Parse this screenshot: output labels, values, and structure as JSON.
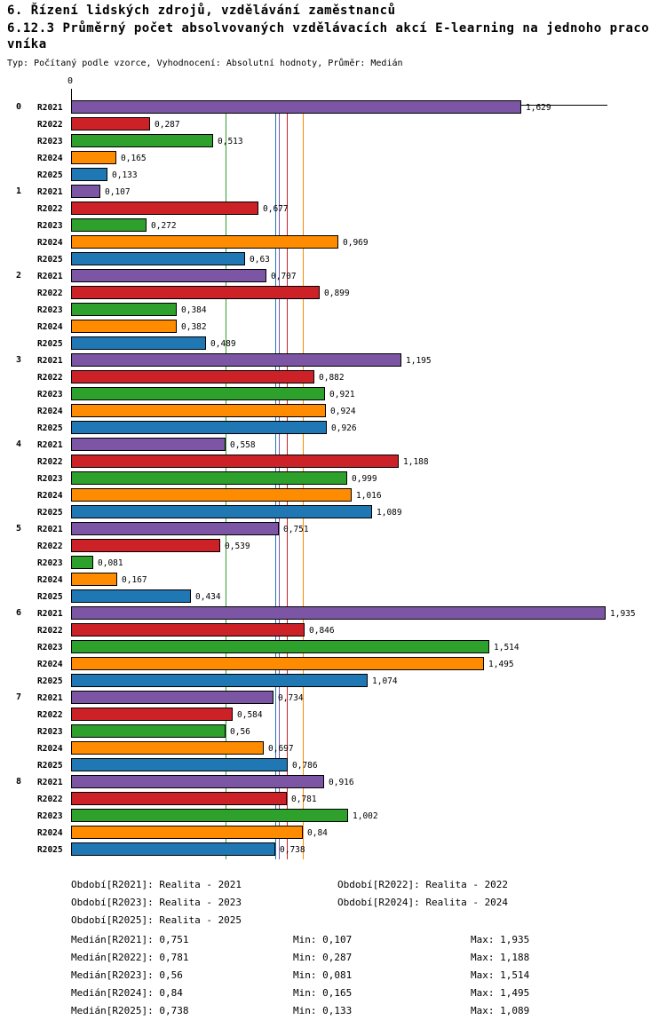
{
  "header": {
    "title": "6. Řízení lidských zdrojů, vzdělávání zaměstnanců",
    "subtitle_line1": "6.12.3 Průměrný počet absolvovaných vzdělávacích akcí E-learning na jednoho praco",
    "subtitle_line2": "vníka",
    "meta": "Typ: Počítaný podle vzorce, Vyhodnocení: Absolutní hodnoty, Průměr: Medián"
  },
  "chart_data": {
    "type": "bar",
    "orientation": "horizontal",
    "title": "6.12.3 Průměrný počet absolvovaných vzdělávacích akcí E-learning na jednoho pracovníka",
    "xlabel": "",
    "ylabel": "",
    "xlim": [
      0,
      1.98
    ],
    "grid": false,
    "axis_zero_label": "0",
    "categories": [
      "0",
      "1",
      "2",
      "3",
      "4",
      "5",
      "6",
      "7",
      "8"
    ],
    "series": [
      {
        "name": "R2021",
        "color": "#7d55a5",
        "values": [
          1.629,
          0.107,
          0.707,
          1.195,
          0.558,
          0.751,
          1.935,
          0.734,
          0.916
        ],
        "labels": [
          "1,629",
          "0,107",
          "0,707",
          "1,195",
          "0,558",
          "0,751",
          "1,935",
          "0,734",
          "0,916"
        ]
      },
      {
        "name": "R2022",
        "color": "#cc2127",
        "values": [
          0.287,
          0.677,
          0.899,
          0.882,
          1.188,
          0.539,
          0.846,
          0.584,
          0.781
        ],
        "labels": [
          "0,287",
          "0,677",
          "0,899",
          "0,882",
          "1,188",
          "0,539",
          "0,846",
          "0,584",
          "0,781"
        ]
      },
      {
        "name": "R2023",
        "color": "#2ea02c",
        "values": [
          0.513,
          0.272,
          0.384,
          0.921,
          0.999,
          0.081,
          1.514,
          0.56,
          1.002
        ],
        "labels": [
          "0,513",
          "0,272",
          "0,384",
          "0,921",
          "0,999",
          "0,081",
          "1,514",
          "0,56",
          "1,002"
        ]
      },
      {
        "name": "R2024",
        "color": "#ff8c00",
        "values": [
          0.165,
          0.969,
          0.382,
          0.924,
          1.016,
          0.167,
          1.495,
          0.697,
          0.84
        ],
        "labels": [
          "0,165",
          "0,969",
          "0,382",
          "0,924",
          "1,016",
          "0,167",
          "1,495",
          "0,697",
          "0,84"
        ]
      },
      {
        "name": "R2025",
        "color": "#1f77b4",
        "values": [
          0.133,
          0.63,
          0.489,
          0.926,
          1.089,
          0.434,
          1.074,
          0.786,
          0.738
        ],
        "labels": [
          "0,133",
          "0,63",
          "0,489",
          "0,926",
          "1,089",
          "0,434",
          "1,074",
          "0,786",
          "0,738"
        ]
      }
    ],
    "medians": [
      {
        "series": "R2021",
        "value": 0.751,
        "color": "#7d55a5"
      },
      {
        "series": "R2022",
        "value": 0.781,
        "color": "#cc2127"
      },
      {
        "series": "R2023",
        "value": 0.56,
        "color": "#2ea02c"
      },
      {
        "series": "R2024",
        "value": 0.84,
        "color": "#ff8c00"
      },
      {
        "series": "R2025",
        "value": 0.738,
        "color": "#1f77b4"
      }
    ],
    "legend_position": "bottom"
  },
  "legend": [
    {
      "text": "Období[R2021]: Realita - 2021"
    },
    {
      "text": "Období[R2022]: Realita - 2022"
    },
    {
      "text": "Období[R2023]: Realita - 2023"
    },
    {
      "text": "Období[R2024]: Realita - 2024"
    },
    {
      "text": "Období[R2025]: Realita - 2025"
    }
  ],
  "stats": [
    {
      "median": "Medián[R2021]: 0,751",
      "min": "Min: 0,107",
      "max": "Max: 1,935"
    },
    {
      "median": "Medián[R2022]: 0,781",
      "min": "Min: 0,287",
      "max": "Max: 1,188"
    },
    {
      "median": "Medián[R2023]: 0,56",
      "min": "Min: 0,081",
      "max": "Max: 1,514"
    },
    {
      "median": "Medián[R2024]: 0,84",
      "min": "Min: 0,165",
      "max": "Max: 1,495"
    },
    {
      "median": "Medián[R2025]: 0,738",
      "min": "Min: 0,133",
      "max": "Max: 1,089"
    }
  ]
}
